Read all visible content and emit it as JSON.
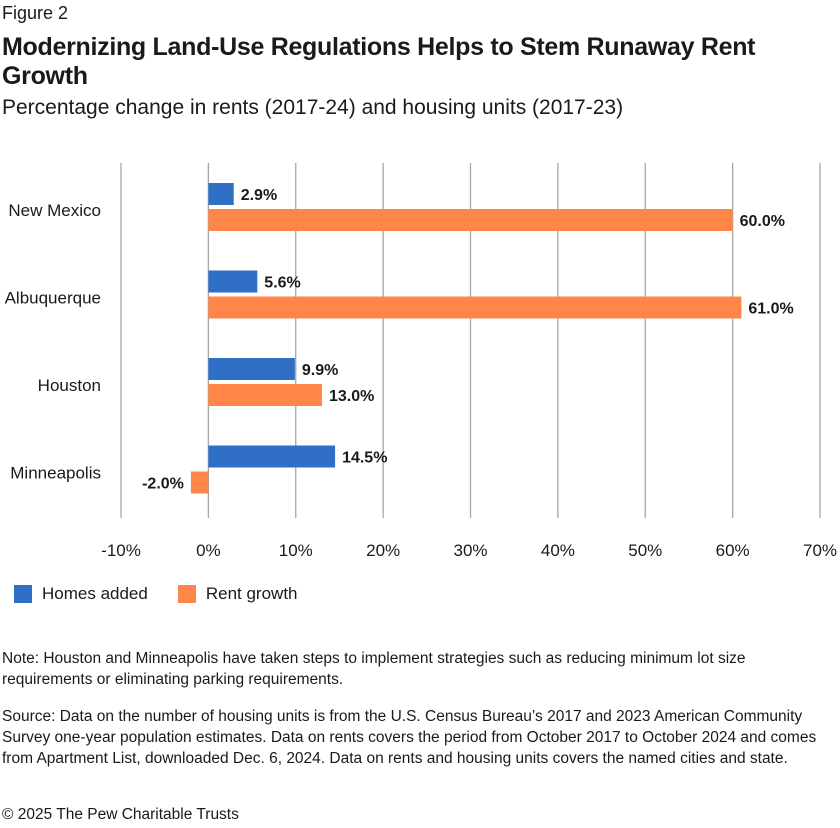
{
  "figure_label": "Figure 2",
  "chart_data": {
    "type": "bar",
    "orientation": "horizontal",
    "title": "Modernizing Land-Use Regulations Helps to Stem Runaway Rent Growth",
    "subtitle": "Percentage change in rents (2017-24) and housing units (2017-23)",
    "categories": [
      "New Mexico",
      "Albuquerque",
      "Houston",
      "Minneapolis"
    ],
    "series": [
      {
        "name": "Homes added",
        "color": "#2f6fc6",
        "values": [
          2.9,
          5.6,
          9.9,
          14.5
        ],
        "labels": [
          "2.9%",
          "5.6%",
          "9.9%",
          "14.5%"
        ]
      },
      {
        "name": "Rent growth",
        "color": "#ff8548",
        "values": [
          60.0,
          61.0,
          13.0,
          -2.0
        ],
        "labels": [
          "60.0%",
          "61.0%",
          "13.0%",
          "-2.0%"
        ]
      }
    ],
    "xlim": [
      -10,
      70
    ],
    "ticks": [
      -10,
      0,
      10,
      20,
      30,
      40,
      50,
      60,
      70
    ],
    "tick_labels": [
      "-10%",
      "0%",
      "10%",
      "20%",
      "30%",
      "40%",
      "50%",
      "60%",
      "70%"
    ],
    "grid": true,
    "legend_position": "bottom-left",
    "gridline_color": "#a6a6a6"
  },
  "note": "Note: Houston and Minneapolis have taken steps to implement strategies such as reducing minimum lot size requirements or eliminating parking requirements.",
  "source": "Source: Data on the number of housing units is from the U.S. Census Bureau’s 2017 and 2023 American Community Survey one-year population estimates. Data on rents covers the period from October 2017 to October 2024 and comes from Apartment List, downloaded Dec. 6, 2024. Data on rents and housing units covers the named cities and state.",
  "copyright": "© 2025 The Pew Charitable Trusts"
}
